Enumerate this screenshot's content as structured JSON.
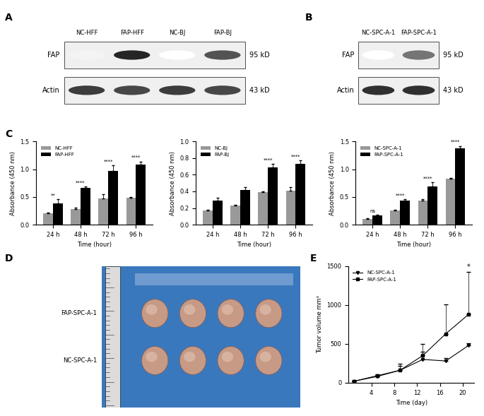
{
  "chart_data": [
    {
      "panel": "A",
      "type": "blot",
      "lanes": [
        "NC-HFF",
        "FAP-HFF",
        "NC-BJ",
        "FAP-BJ"
      ],
      "rows": [
        {
          "name": "FAP",
          "size": "95 kD",
          "intensity": [
            0.05,
            0.95,
            0,
            0.75
          ]
        },
        {
          "name": "Actin",
          "size": "43 kD",
          "intensity": [
            0.85,
            0.8,
            0.85,
            0.8
          ]
        }
      ]
    },
    {
      "panel": "B",
      "type": "blot",
      "lanes": [
        "NC-SPC-A-1",
        "FAP-SPC-A-1"
      ],
      "rows": [
        {
          "name": "FAP",
          "size": "95 kD",
          "intensity": [
            0,
            0.6
          ]
        },
        {
          "name": "Actin",
          "size": "43 kD",
          "intensity": [
            0.9,
            0.9
          ]
        }
      ]
    },
    {
      "panel": "C",
      "type": "bar",
      "categories": [
        "24 h",
        "48 h",
        "72 h",
        "96 h"
      ],
      "x_label": "Time (hour)",
      "y_label": "Absorbance (450 nm)",
      "ylim": [
        0,
        1.5
      ],
      "yticks": [
        {
          "value": 0,
          "label": "0.0"
        },
        0.5,
        {
          "value": 1,
          "label": "1.0"
        },
        1.5
      ],
      "series": [
        {
          "name": "NC-HFF",
          "color": "#999999",
          "values": [
            0.2,
            0.28,
            0.47,
            0.48
          ],
          "errors": [
            0.02,
            0.03,
            0.08,
            0.02
          ]
        },
        {
          "name": "FAP-HFF",
          "color": "#000000",
          "values": [
            0.38,
            0.66,
            0.97,
            1.08
          ],
          "errors": [
            0.08,
            0.03,
            0.1,
            0.06
          ]
        }
      ],
      "annotations": [
        "**",
        "****",
        "****",
        "****"
      ],
      "legend": "upper left"
    },
    {
      "type": "bar",
      "categories": [
        "24 h",
        "48 h",
        "72 h",
        "96 h"
      ],
      "x_label": "Time (hour)",
      "y_label": "Absorbance (450 nm)",
      "ylim": [
        0,
        1.0
      ],
      "yticks": [
        {
          "value": 0,
          "label": "0.0"
        },
        0.2,
        0.4,
        0.6,
        0.8,
        {
          "value": 1,
          "label": "1.0"
        }
      ],
      "series": [
        {
          "name": "NC-BJ",
          "color": "#999999",
          "values": [
            0.17,
            0.23,
            0.39,
            0.41
          ],
          "errors": [
            0.01,
            0.01,
            0.01,
            0.04
          ]
        },
        {
          "name": "FAP-BJ",
          "color": "#000000",
          "values": [
            0.29,
            0.42,
            0.69,
            0.73
          ],
          "errors": [
            0.03,
            0.03,
            0.04,
            0.04
          ]
        }
      ],
      "annotations": [
        null,
        null,
        "****",
        "****"
      ],
      "legend": "upper left"
    },
    {
      "type": "bar",
      "categories": [
        "24 h",
        "48 h",
        "72 h",
        "96 h"
      ],
      "x_label": "Time (hour)",
      "y_label": "Absorbance (450 nm)",
      "ylim": [
        0,
        1.5
      ],
      "yticks": [
        {
          "value": 0,
          "label": "0.0"
        },
        0.5,
        {
          "value": 1,
          "label": "1.0"
        },
        1.5
      ],
      "series": [
        {
          "name": "NC-SPC-A-1",
          "color": "#999999",
          "values": [
            0.1,
            0.26,
            0.44,
            0.83
          ],
          "errors": [
            0.01,
            0.01,
            0.02,
            0.01
          ]
        },
        {
          "name": "FAP-SPC-A-1",
          "color": "#000000",
          "values": [
            0.17,
            0.43,
            0.69,
            1.37
          ],
          "errors": [
            0.01,
            0.03,
            0.07,
            0.05
          ]
        }
      ],
      "annotations": [
        "ns",
        "****",
        "****",
        "****"
      ],
      "legend": "upper left"
    },
    {
      "panel": "D",
      "type": "photo",
      "rows": [
        {
          "name": "FAP-SPC-A-1",
          "count": 4
        },
        {
          "name": "NC-SPC-A-1",
          "count": 4
        }
      ]
    },
    {
      "panel": "E",
      "type": "line",
      "x": [
        1,
        5,
        9,
        13,
        17,
        21
      ],
      "x_label": "Time (day)",
      "y_label": "Tumor volume mm³",
      "xlim": [
        0,
        22
      ],
      "xticks": [
        4,
        8,
        12,
        16,
        20
      ],
      "ylim": [
        0,
        1500
      ],
      "yticks": [
        0,
        500,
        1000,
        1500
      ],
      "series": [
        {
          "name": "NC-SPC-A-1",
          "color": "#000000",
          "marker": "triangle_down",
          "values": [
            20,
            80,
            160,
            300,
            280,
            480
          ],
          "errors": [
            5,
            20,
            60,
            100,
            40,
            30
          ]
        },
        {
          "name": "FAP-SPC-A-1",
          "color": "#000000",
          "marker": "square",
          "values": [
            20,
            90,
            160,
            350,
            630,
            880
          ],
          "errors": [
            5,
            20,
            80,
            150,
            380,
            550
          ]
        }
      ],
      "annotations": [
        null,
        null,
        null,
        null,
        null,
        "*"
      ],
      "legend": "upper left"
    }
  ]
}
